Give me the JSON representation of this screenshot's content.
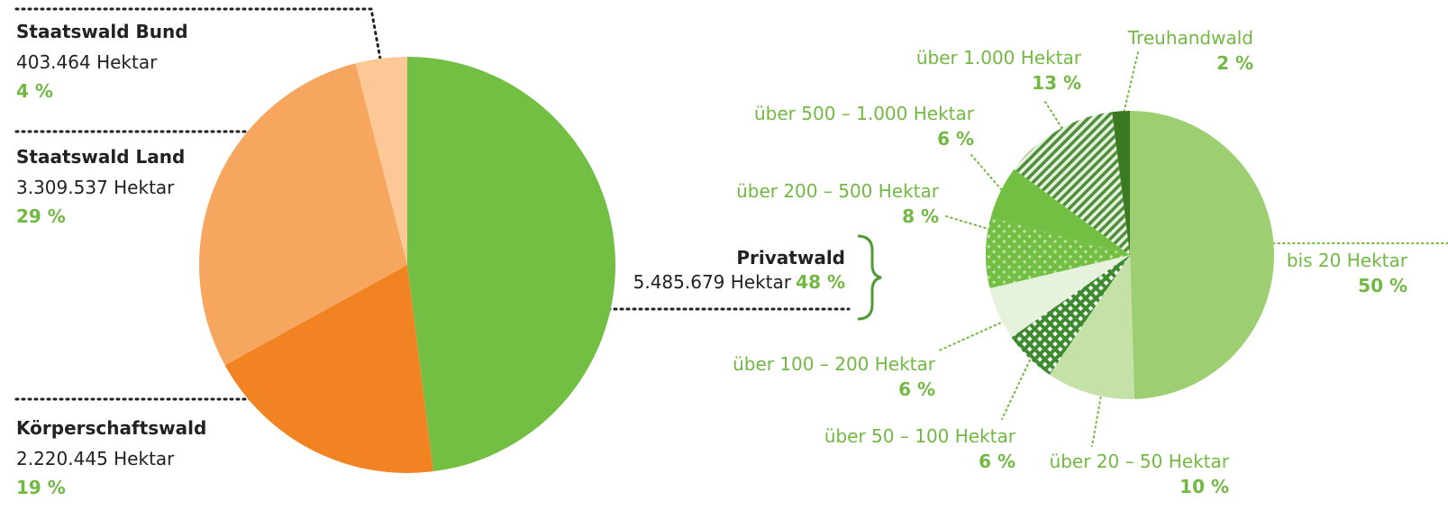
{
  "chart_data": [
    {
      "type": "pie",
      "categories": [
        "Privatwald",
        "Körperschaftswald",
        "Staatswald Land",
        "Staatswald Bund"
      ],
      "values": [
        48,
        19,
        29,
        4
      ],
      "value_labels": [
        "48 %",
        "19 %",
        "29 %",
        "4 %"
      ],
      "hectares": [
        5485679,
        2220445,
        3309537,
        403464
      ],
      "hectare_labels": [
        "5.485.679 Hektar",
        "2.220.445 Hektar",
        "3.309.537 Hektar",
        "403.464 Hektar"
      ],
      "colors": [
        "#72bf44",
        "#f28322",
        "#f7a660",
        "#fcc896"
      ]
    },
    {
      "type": "pie",
      "categories": [
        "bis 20 Hektar",
        "über 20 – 50 Hektar",
        "über 50 – 100 Hektar",
        "über 100 – 200 Hektar",
        "über 200 – 500 Hektar",
        "über 500 – 1.000 Hektar",
        "über 1.000 Hektar",
        "Treuhandwald"
      ],
      "values": [
        50,
        10,
        6,
        6,
        8,
        6,
        13,
        2
      ],
      "value_labels": [
        "50 %",
        "10 %",
        "6 %",
        "6 %",
        "8 %",
        "6 %",
        "13 %",
        "2 %"
      ],
      "colors": [
        "#9dcf72",
        "#c4e1a8",
        "#3e8a2f",
        "#e6f2dc",
        "#72bf44",
        "#72bf44",
        "#4f8f3c",
        "#3b7a23"
      ],
      "patterns": [
        "solid",
        "solid",
        "crosshatch",
        "solid",
        "dots",
        "solid",
        "hatch",
        "solid"
      ]
    }
  ]
}
